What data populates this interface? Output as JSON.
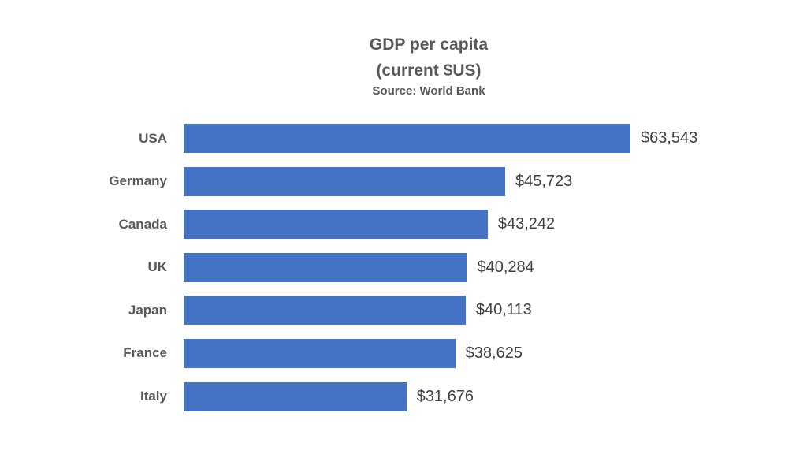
{
  "chart": {
    "title_line1": "GDP per capita",
    "title_line2": "(current $US)",
    "subtitle": "Source: World Bank"
  },
  "chart_data": {
    "type": "bar",
    "orientation": "horizontal",
    "title": "GDP per capita (current $US)",
    "subtitle": "Source: World Bank",
    "categories": [
      "USA",
      "Germany",
      "Canada",
      "UK",
      "Japan",
      "France",
      "Italy"
    ],
    "values": [
      63543,
      45723,
      43242,
      40284,
      40113,
      38625,
      31676
    ],
    "value_labels": [
      "$63,543",
      "$45,723",
      "$43,242",
      "$40,284",
      "$40,113",
      "$38,625",
      "$31,676"
    ],
    "xlabel": "",
    "ylabel": "",
    "xlim": [
      0,
      63543
    ],
    "grid": false,
    "legend": false,
    "axis_lines": false,
    "bar_color": "#4472C4",
    "category_label_color": "#595959",
    "value_label_color": "#404040",
    "title_color": "#595959",
    "background_color": "#FFFFFF"
  }
}
